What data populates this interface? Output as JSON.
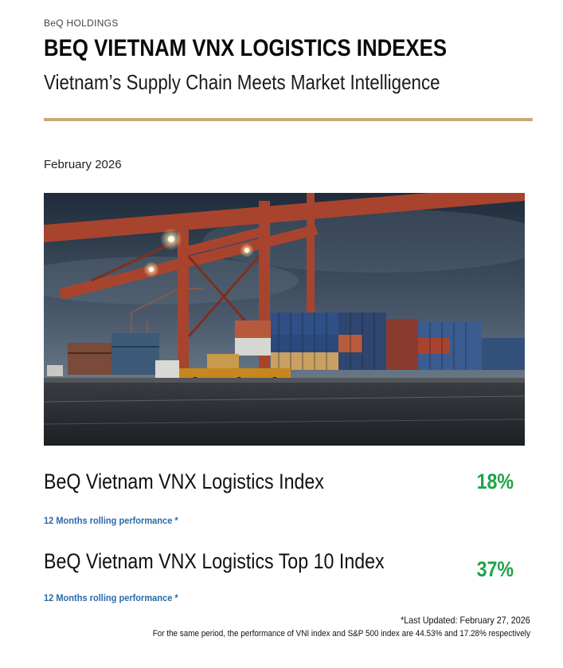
{
  "header": {
    "brand": "BeQ HOLDINGS",
    "title": "BEQ VIETNAM VNX LOGISTICS INDEXES",
    "subtitle": "Vietnam’s Supply Chain Meets Market Intelligence",
    "date": "February 2026"
  },
  "colors": {
    "rule": "#c9a97c",
    "positive": "#1fa34a",
    "note": "#2a6aa8"
  },
  "hero_image": {
    "icon": "port-container-crane-photo"
  },
  "indexes": [
    {
      "name": "BeQ Vietnam VNX Logistics Index",
      "value": "18%",
      "note": "12 Months rolling performance *"
    },
    {
      "name": "BeQ Vietnam VNX Logistics Top 10 Index",
      "value": "37%",
      "note": "12 Months rolling performance *"
    }
  ],
  "footer": {
    "updated": "*Last Updated: February 27, 2026",
    "comparison": "For the same period, the performance of VNI index and S&P 500 index are 44.53% and 17.28% respectively"
  }
}
